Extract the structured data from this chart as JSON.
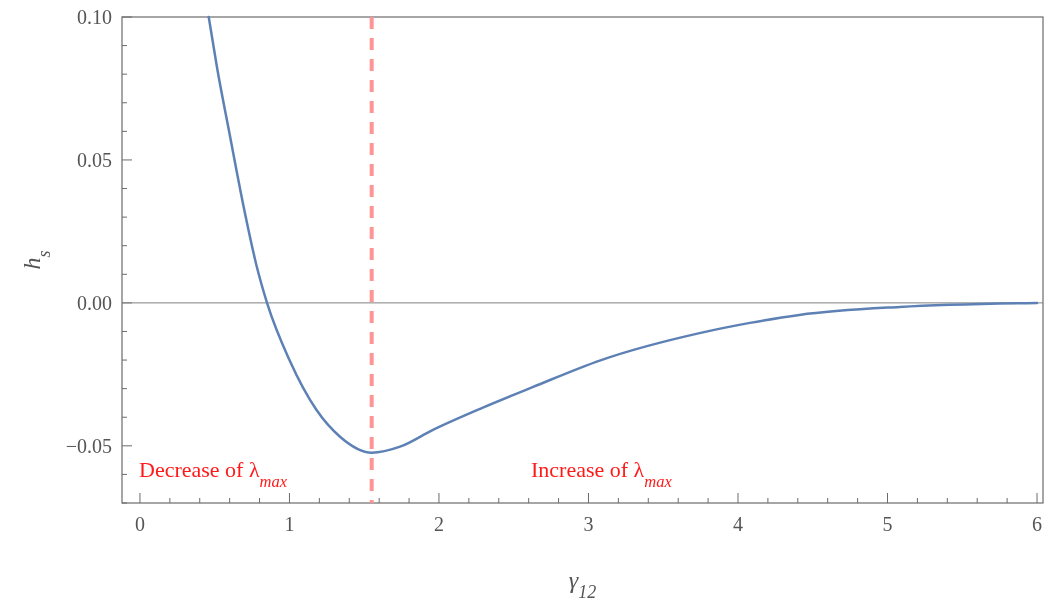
{
  "chart_data": {
    "type": "line",
    "xlabel": "γ$_{12}$",
    "ylabel": "h$_{s}$",
    "x": [
      0.46,
      0.515,
      0.6,
      0.7,
      0.78,
      0.85,
      1.0,
      1.18,
      1.34,
      1.55,
      1.74,
      1.96,
      2.29,
      2.63,
      3.08,
      3.75,
      4.08,
      4.41,
      5.08,
      6.0
    ],
    "series": [
      {
        "color": "#5e81b5",
        "values": [
          0.1,
          0.0825,
          0.059,
          0.032,
          0.013,
          0,
          -0.02,
          -0.0374,
          -0.0469,
          -0.0524,
          -0.0503,
          -0.0444,
          -0.0367,
          -0.0294,
          -0.0201,
          -0.0105,
          -0.007,
          -0.0042,
          -0.0014,
          0
        ]
      }
    ],
    "xlim": [
      -0.12,
      6.04
    ],
    "ylim": [
      -0.07,
      0.1
    ],
    "xticks": [
      0,
      {
        "value": 0.2,
        "label": null
      },
      {
        "value": 0.4,
        "label": null
      },
      {
        "value": 0.6,
        "label": null
      },
      {
        "value": 0.8,
        "label": null
      },
      1,
      {
        "value": 1.2,
        "label": null
      },
      {
        "value": 1.4,
        "label": null
      },
      {
        "value": 1.6,
        "label": null
      },
      {
        "value": 1.8,
        "label": null
      },
      2,
      {
        "value": 2.2,
        "label": null
      },
      {
        "value": 2.4,
        "label": null
      },
      {
        "value": 2.6,
        "label": null
      },
      {
        "value": 2.8,
        "label": null
      },
      3,
      {
        "value": 3.2,
        "label": null
      },
      {
        "value": 3.4,
        "label": null
      },
      {
        "value": 3.6,
        "label": null
      },
      {
        "value": 3.8,
        "label": null
      },
      4,
      {
        "value": 4.2,
        "label": null
      },
      {
        "value": 4.4,
        "label": null
      },
      {
        "value": 4.6,
        "label": null
      },
      {
        "value": 4.8,
        "label": null
      },
      5,
      {
        "value": 5.2,
        "label": null
      },
      {
        "value": 5.4,
        "label": null
      },
      {
        "value": 5.6,
        "label": null
      },
      {
        "value": 5.8,
        "label": null
      },
      6
    ],
    "yticks": [
      {
        "value": -0.07,
        "label": null
      },
      {
        "value": -0.06,
        "label": null
      },
      {
        "value": -0.05,
        "label": "−0.05"
      },
      {
        "value": -0.04,
        "label": null
      },
      {
        "value": -0.03,
        "label": null
      },
      {
        "value": -0.02,
        "label": null
      },
      {
        "value": -0.01,
        "label": null
      },
      {
        "value": 0,
        "label": "0.00"
      },
      {
        "value": 0.01,
        "label": null
      },
      {
        "value": 0.02,
        "label": null
      },
      {
        "value": 0.03,
        "label": null
      },
      {
        "value": 0.04,
        "label": null
      },
      {
        "value": 0.05,
        "label": "0.05"
      },
      {
        "value": 0.06,
        "label": null
      },
      {
        "value": 0.07,
        "label": null
      },
      {
        "value": 0.08,
        "label": null
      },
      {
        "value": 0.09,
        "label": null
      },
      {
        "value": 0.1,
        "label": "0.10"
      }
    ],
    "ref_lines": [
      {
        "axis": "y",
        "value": 0,
        "color": "#808080",
        "line_style": "solid"
      },
      {
        "axis": "x",
        "value": 1.55,
        "color": "#ff9494",
        "line_style": "dashed"
      }
    ],
    "annotations": [
      "Decrease of λ$_{max}$",
      "Increase of λ$_{max}$"
    ],
    "grid": false,
    "marker": "none",
    "line_style": "solid"
  }
}
